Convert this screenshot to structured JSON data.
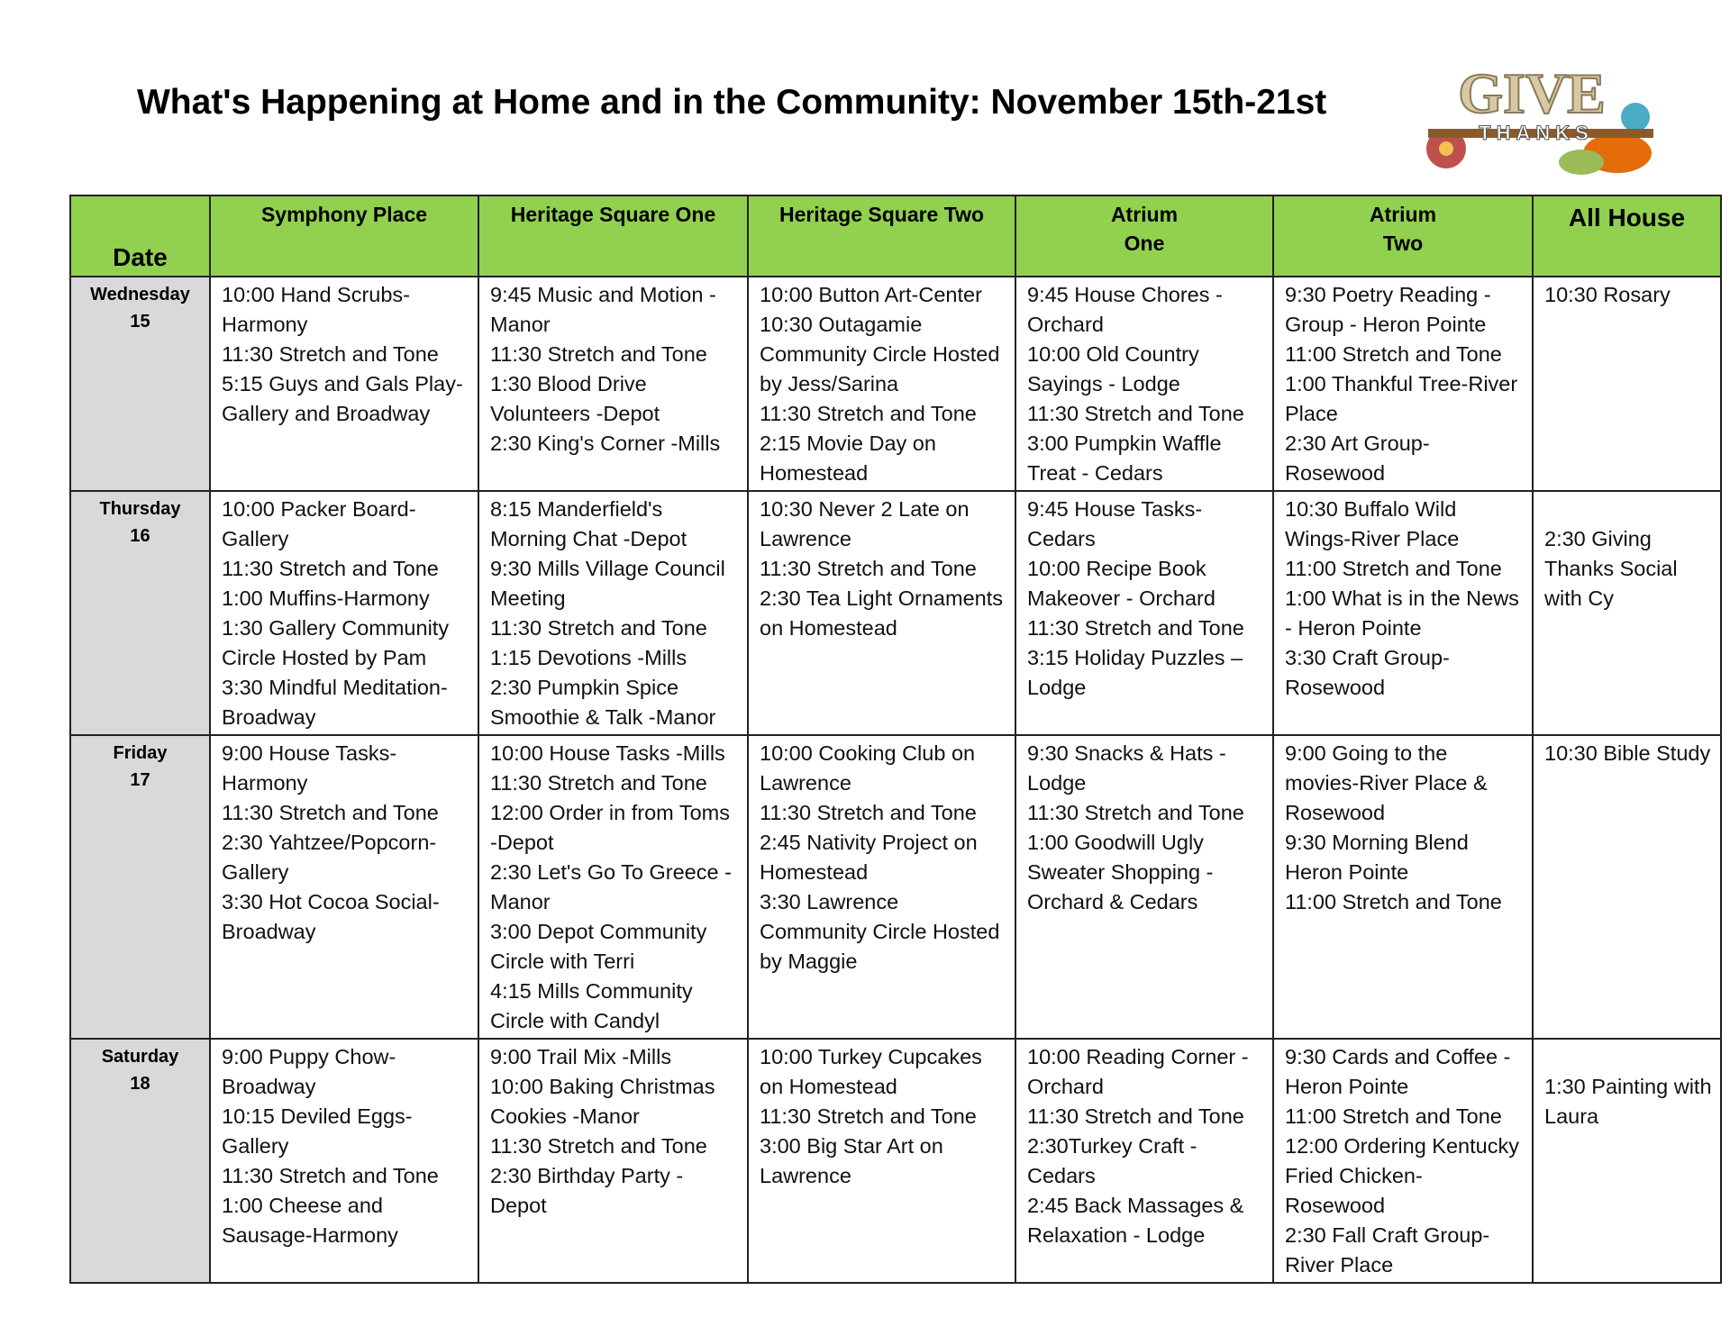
{
  "title": "What's Happening at Home and in the Community: November 15th-21st",
  "logo": {
    "word1": "GIVE",
    "word2": "THANKS"
  },
  "table": {
    "header": [
      "Date",
      "Symphony Place",
      "Heritage Square One",
      "Heritage Square Two",
      "Atrium\nOne",
      "Atrium\nTwo",
      "All House"
    ],
    "rows": [
      {
        "date": "Wednesday\n15",
        "cells": [
          [
            "10:00 Hand Scrubs-Harmony",
            "11:30 Stretch and Tone",
            "5:15 Guys and Gals Play-Gallery and Broadway"
          ],
          [
            "9:45 Music and Motion - Manor",
            "11:30 Stretch and Tone",
            "1:30 Blood Drive Volunteers -Depot",
            "2:30 King's Corner -Mills"
          ],
          [
            "10:00 Button Art-Center",
            "10:30 Outagamie Community Circle Hosted by Jess/Sarina",
            "11:30 Stretch and Tone",
            "2:15 Movie Day on Homestead"
          ],
          [
            "9:45 House Chores - Orchard",
            "10:00 Old Country Sayings - Lodge",
            "11:30 Stretch and Tone",
            "3:00 Pumpkin Waffle Treat - Cedars"
          ],
          [
            "9:30 Poetry Reading - Group - Heron Pointe",
            "11:00 Stretch and Tone",
            "1:00 Thankful Tree-River Place",
            "2:30 Art Group-Rosewood"
          ],
          [
            "10:30 Rosary"
          ]
        ]
      },
      {
        "date": "Thursday\n16",
        "cells": [
          [
            "10:00 Packer Board-Gallery",
            "11:30 Stretch and Tone",
            "1:00 Muffins-Harmony",
            "1:30 Gallery Community Circle Hosted by Pam",
            "3:30 Mindful Meditation-Broadway"
          ],
          [
            "8:15 Manderfield's Morning Chat -Depot",
            "9:30 Mills Village Council Meeting",
            "11:30 Stretch and Tone",
            "1:15 Devotions -Mills",
            "2:30 Pumpkin Spice Smoothie & Talk -Manor"
          ],
          [
            "10:30 Never 2 Late on Lawrence",
            "11:30 Stretch and Tone",
            "2:30 Tea Light Ornaments on Homestead"
          ],
          [
            "9:45 House Tasks-Cedars",
            "10:00 Recipe Book Makeover - Orchard",
            "11:30 Stretch and Tone",
            "3:15 Holiday Puzzles – Lodge"
          ],
          [
            "10:30 Buffalo Wild Wings-River Place",
            "11:00 Stretch and Tone",
            "1:00 What is in the News - Heron Pointe",
            "3:30 Craft Group-Rosewood"
          ],
          [
            "2:30 Giving Thanks Social with Cy"
          ]
        ]
      },
      {
        "date": "Friday\n17",
        "cells": [
          [
            "9:00 House Tasks-Harmony",
            "11:30 Stretch and Tone",
            "2:30 Yahtzee/Popcorn-Gallery",
            "3:30 Hot Cocoa Social-Broadway"
          ],
          [
            "10:00 House Tasks -Mills",
            "11:30 Stretch and Tone",
            "12:00 Order in from Toms -Depot",
            "2:30 Let's Go To Greece -Manor",
            "3:00 Depot Community Circle with Terri",
            "4:15 Mills Community Circle with Candyl"
          ],
          [
            "10:00 Cooking Club on Lawrence",
            "11:30 Stretch and Tone",
            "2:45 Nativity Project on Homestead",
            "3:30 Lawrence Community Circle Hosted by Maggie"
          ],
          [
            "9:30 Snacks & Hats - Lodge",
            "11:30 Stretch and Tone",
            "1:00 Goodwill Ugly Sweater Shopping - Orchard & Cedars"
          ],
          [
            "9:00 Going to the movies-River Place & Rosewood",
            "9:30 Morning Blend Heron Pointe",
            "11:00 Stretch and Tone"
          ],
          [
            "10:30 Bible Study"
          ]
        ]
      },
      {
        "date": "Saturday\n18",
        "cells": [
          [
            "9:00 Puppy Chow-Broadway",
            "10:15 Deviled Eggs-Gallery",
            "11:30 Stretch and Tone",
            "1:00 Cheese and Sausage-Harmony"
          ],
          [
            "9:00 Trail Mix -Mills",
            "10:00 Baking Christmas Cookies -Manor",
            "11:30 Stretch and Tone",
            "2:30 Birthday Party - Depot"
          ],
          [
            "10:00 Turkey Cupcakes on Homestead",
            "11:30 Stretch and Tone",
            "3:00 Big Star Art on Lawrence"
          ],
          [
            "10:00 Reading Corner - Orchard",
            "11:30 Stretch and Tone",
            "2:30Turkey Craft - Cedars",
            "2:45 Back Massages & Relaxation - Lodge"
          ],
          [
            "9:30 Cards and Coffee - Heron Pointe",
            "11:00 Stretch and Tone",
            "12:00 Ordering Kentucky Fried Chicken- Rosewood",
            "2:30 Fall Craft Group-River Place"
          ],
          [
            "1:30 Painting with Laura"
          ]
        ]
      }
    ]
  }
}
